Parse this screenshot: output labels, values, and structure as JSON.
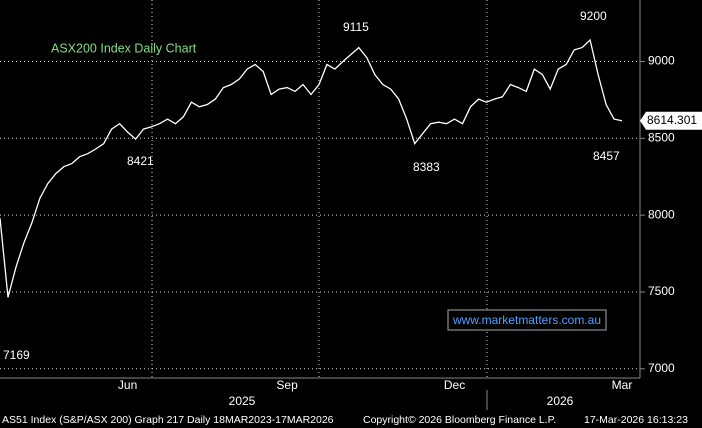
{
  "chart_data": {
    "type": "line",
    "title": "ASX200 Index Daily Chart",
    "watermark": "www.marketmatters.com.au",
    "footer": [
      "AS51 Index (S&P/ASX 200) Graph 217 Daily 18MAR2023-17MAR2026",
      "Copyright© 2026 Bloomberg Finance L.P.",
      "17-Mar-2026 16:13:23"
    ],
    "year_labels": [
      "2025",
      "2026"
    ],
    "annotations": [
      7169,
      8421,
      9115,
      8383,
      9200,
      8457
    ],
    "last_price": 8614.301,
    "categories": [
      null,
      null,
      null,
      null,
      null,
      null,
      null,
      null,
      null,
      null,
      null,
      null,
      null,
      null,
      null,
      null,
      "Jun",
      null,
      null,
      null,
      null,
      null,
      null,
      null,
      null,
      null,
      null,
      null,
      null,
      null,
      null,
      null,
      null,
      null,
      null,
      null,
      "Sep",
      null,
      null,
      null,
      null,
      null,
      null,
      null,
      null,
      null,
      null,
      null,
      null,
      null,
      null,
      null,
      null,
      null,
      null,
      null,
      null,
      "Dec",
      null,
      null,
      null,
      null,
      null,
      null,
      null,
      null,
      null,
      null,
      null,
      null,
      null,
      null,
      null,
      null,
      null,
      null,
      null,
      null,
      "Mar"
    ],
    "series": [
      {
        "name": "AS51 Index",
        "color": "#ffffff",
        "values": [
          7980,
          7465,
          7660,
          7820,
          7950,
          8110,
          8205,
          8270,
          8315,
          8335,
          8380,
          8400,
          8430,
          8465,
          8560,
          8595,
          8540,
          8495,
          8560,
          8575,
          8595,
          8625,
          8595,
          8640,
          8735,
          8705,
          8720,
          8755,
          8830,
          8850,
          8885,
          8950,
          8980,
          8935,
          8785,
          8820,
          8830,
          8805,
          8850,
          8785,
          8850,
          8980,
          8950,
          9000,
          9045,
          9090,
          9025,
          8915,
          8850,
          8820,
          8755,
          8625,
          8465,
          8530,
          8595,
          8605,
          8595,
          8625,
          8595,
          8705,
          8755,
          8735,
          8755,
          8770,
          8850,
          8830,
          8805,
          8950,
          8915,
          8820,
          8950,
          8980,
          9075,
          9090,
          9140,
          8915,
          8720,
          8625,
          8614
        ]
      }
    ],
    "ylim": [
      6940,
      9400
    ],
    "yticks": [
      7000,
      7500,
      8000,
      8500,
      9000
    ],
    "grid": true
  }
}
